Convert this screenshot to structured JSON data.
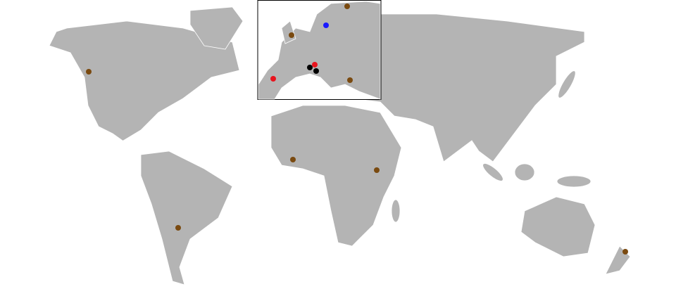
{
  "markers": [
    {
      "color": "#7a4a10"
    },
    {
      "color": "#7a4a10"
    },
    {
      "color": "#7a4a10"
    },
    {
      "color": "#7a4a10"
    },
    {
      "color": "#7a4a10"
    },
    {
      "color": "#7a4a10"
    },
    {
      "color": "#7a4a10"
    },
    {
      "color": "#7a4a10"
    },
    {
      "color": "#1a1aff"
    },
    {
      "color": "#e8141e"
    },
    {
      "color": "#e8141e"
    },
    {
      "color": "#000000"
    },
    {
      "color": "#000000"
    }
  ]
}
